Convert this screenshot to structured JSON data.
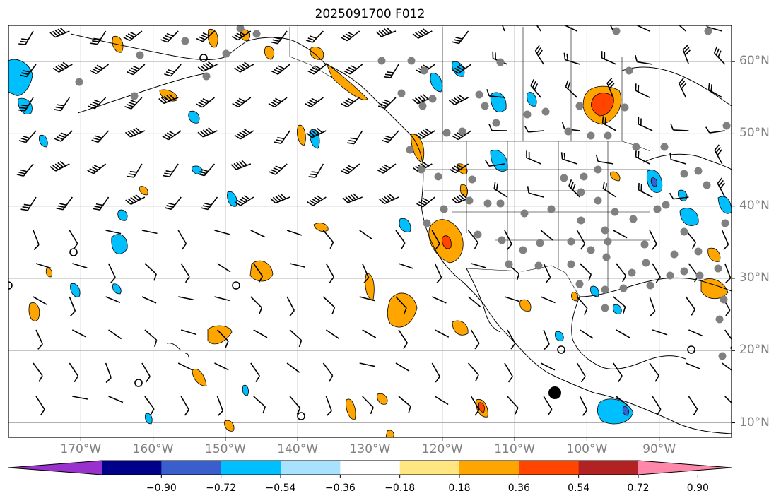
{
  "title": "2025091700 F012",
  "map": {
    "lon_range": [
      -180,
      -80
    ],
    "lat_range": [
      8,
      65
    ],
    "lat_labels": [
      {
        "lat": 60,
        "text": "60°N"
      },
      {
        "lat": 50,
        "text": "50°N"
      },
      {
        "lat": 40,
        "text": "40°N"
      },
      {
        "lat": 30,
        "text": "30°N"
      },
      {
        "lat": 20,
        "text": "20°N"
      },
      {
        "lat": 10,
        "text": "10°N"
      }
    ],
    "lon_labels": [
      {
        "lon": -170,
        "text": "170°W"
      },
      {
        "lon": -160,
        "text": "160°W"
      },
      {
        "lon": -150,
        "text": "150°W"
      },
      {
        "lon": -140,
        "text": "140°W"
      },
      {
        "lon": -130,
        "text": "130°W"
      },
      {
        "lon": -120,
        "text": "120°W"
      },
      {
        "lon": -110,
        "text": "110°W"
      },
      {
        "lon": -100,
        "text": "100°W"
      },
      {
        "lon": -90,
        "text": "90°W"
      }
    ],
    "colors": {
      "neg_strong": "#00bfff",
      "neg_weak": "#a9e2ff",
      "pos_weak": "#ffe680",
      "pos_mid": "#ffa500",
      "pos_strong": "#ff4500",
      "station": "#808080"
    }
  },
  "colorbar": {
    "colors": [
      "#9932cc",
      "#00008b",
      "#3a5fcd",
      "#00bfff",
      "#a9e2ff",
      "#ffffff",
      "#ffe680",
      "#ffa500",
      "#ff4500",
      "#b22222",
      "#ff88aa"
    ],
    "levels": [
      "−0.90",
      "−0.72",
      "−0.54",
      "−0.36",
      "−0.18",
      "0.18",
      "0.36",
      "0.54",
      "0.72",
      "0.90"
    ]
  }
}
